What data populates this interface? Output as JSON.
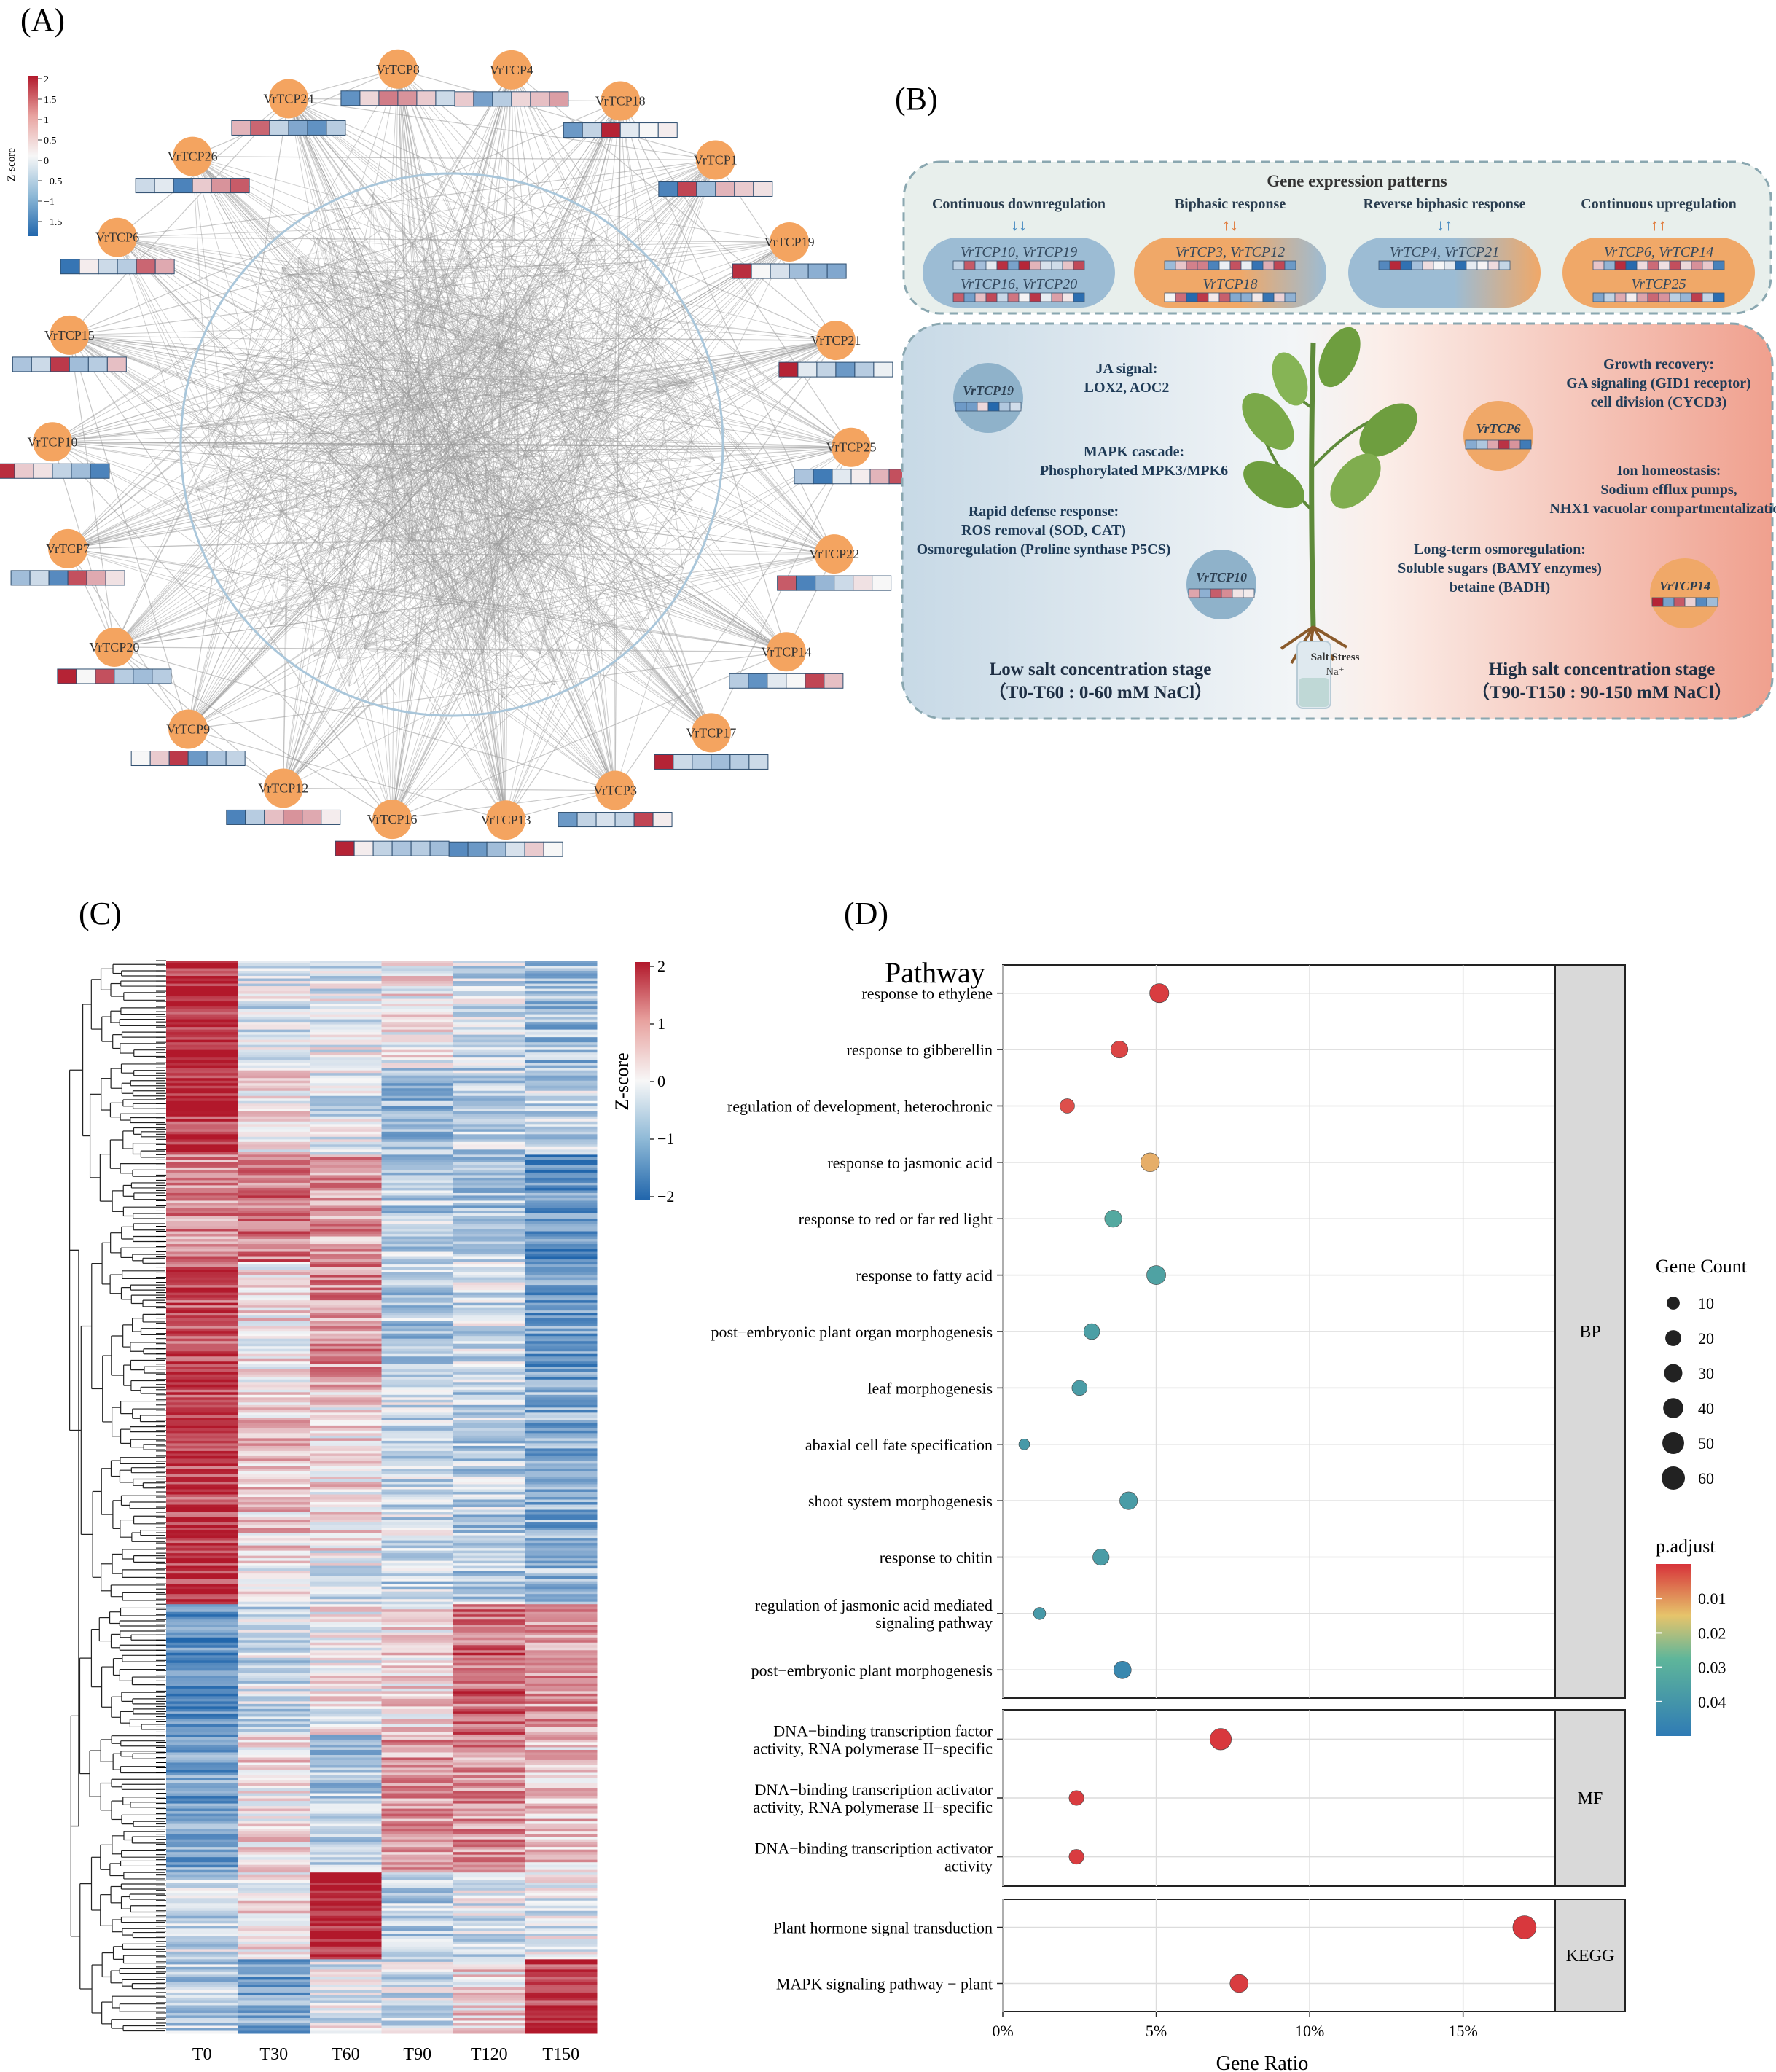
{
  "panel_labels": {
    "a": "(A)",
    "b": "(B)",
    "c": "(C)",
    "d": "(D)"
  },
  "colors": {
    "node": "#f4a460",
    "high": "#b2182b",
    "low": "#2166ac",
    "mid": "#f7f7f7",
    "edge": "#9a9a9a"
  },
  "panel_a": {
    "legend_title": "Z-score",
    "legend_ticks": [
      "2",
      "1.5",
      "1",
      "0.5",
      "0",
      "−0.5",
      "−1",
      "−1.5"
    ],
    "nodes": [
      {
        "name": "VrTCP4",
        "z": [
          0.4,
          -1.2,
          -0.6,
          0.3,
          0.5,
          0.8
        ]
      },
      {
        "name": "VrTCP18",
        "z": [
          -1.3,
          -0.5,
          1.9,
          -0.2,
          0,
          0.1
        ]
      },
      {
        "name": "VrTCP1",
        "z": [
          -1.6,
          1.6,
          -0.8,
          0.6,
          0.4,
          0.2
        ]
      },
      {
        "name": "VrTCP19",
        "z": [
          1.8,
          0,
          -0.3,
          -0.8,
          -1.0,
          -1.1
        ]
      },
      {
        "name": "VrTCP21",
        "z": [
          1.9,
          -0.2,
          -0.5,
          -1.3,
          -0.6,
          -0.1
        ]
      },
      {
        "name": "VrTCP25",
        "z": [
          -0.7,
          -1.7,
          -0.2,
          0.1,
          0.6,
          1.5
        ]
      },
      {
        "name": "VrTCP22",
        "z": [
          1.4,
          -1.6,
          -0.9,
          -0.4,
          0.2,
          0
        ]
      },
      {
        "name": "VrTCP14",
        "z": [
          -0.6,
          -1.4,
          -0.2,
          0,
          1.6,
          0.5
        ]
      },
      {
        "name": "VrTCP17",
        "z": [
          1.9,
          -0.4,
          -0.6,
          -0.8,
          -0.6,
          -0.4
        ]
      },
      {
        "name": "VrTCP3",
        "z": [
          -1.3,
          -0.5,
          -0.3,
          -0.5,
          1.6,
          0.1
        ]
      },
      {
        "name": "VrTCP13",
        "z": [
          -1.5,
          -1.3,
          -0.8,
          -0.3,
          0.4,
          0
        ]
      },
      {
        "name": "VrTCP16",
        "z": [
          1.9,
          0.1,
          -0.5,
          -0.7,
          -0.6,
          -0.8
        ]
      },
      {
        "name": "VrTCP12",
        "z": [
          -1.6,
          -0.6,
          0.5,
          0.9,
          0.7,
          0.1
        ]
      },
      {
        "name": "VrTCP9",
        "z": [
          0,
          0.4,
          1.7,
          -1.3,
          -0.7,
          -0.5
        ]
      },
      {
        "name": "VrTCP20",
        "z": [
          1.9,
          0,
          1.5,
          -0.6,
          -0.8,
          -0.6
        ]
      },
      {
        "name": "VrTCP7",
        "z": [
          -0.8,
          -0.4,
          -1.5,
          1.5,
          0.7,
          0.2
        ]
      },
      {
        "name": "VrTCP10",
        "z": [
          1.8,
          0.4,
          0.2,
          -0.5,
          -0.8,
          -1.6
        ]
      },
      {
        "name": "VrTCP15",
        "z": [
          -0.7,
          -0.4,
          1.7,
          -0.8,
          -0.6,
          0.5
        ]
      },
      {
        "name": "VrTCP6",
        "z": [
          -1.8,
          0.1,
          -0.4,
          -0.6,
          1.3,
          0.7
        ]
      },
      {
        "name": "VrTCP26",
        "z": [
          -0.4,
          -0.2,
          -1.6,
          0.4,
          0.9,
          1.4
        ]
      },
      {
        "name": "VrTCP24",
        "z": [
          0.6,
          1.3,
          -0.5,
          -1.1,
          -1.4,
          -0.6
        ]
      },
      {
        "name": "VrTCP8",
        "z": [
          -1.4,
          0.3,
          1.1,
          0.9,
          0.4,
          -0.4
        ]
      }
    ]
  },
  "panel_b": {
    "patterns_title": "Gene expression patterns",
    "patterns": [
      {
        "title": "Continuous downregulation",
        "arrows": "↓↓",
        "genes": [
          "VrTCP10, VrTCP19",
          "VrTCP16, VrTCP20"
        ]
      },
      {
        "title": "Biphasic response",
        "arrows": "↑↓",
        "genes": [
          "VrTCP3, VrTCP12",
          "VrTCP18"
        ]
      },
      {
        "title": "Reverse biphasic response",
        "arrows": "↓↑",
        "genes": [
          "VrTCP4, VrTCP21"
        ]
      },
      {
        "title": "Continuous upregulation",
        "arrows": "↑↑",
        "genes": [
          "VrTCP6, VrTCP14",
          "VrTCP25"
        ]
      }
    ],
    "gene_circles": {
      "g19": "VrTCP19",
      "g10": "VrTCP10",
      "g6": "VrTCP6",
      "g14": "VrTCP14"
    },
    "low_text": {
      "ja_1": "JA signal:",
      "ja_2": "LOX2, AOC2",
      "mapk_1": "MAPK cascade:",
      "mapk_2": "Phosphorylated MPK3/MPK6",
      "def_1": "Rapid defense response:",
      "def_2": "ROS removal (SOD, CAT)",
      "def_3": "Osmoregulation (Proline synthase P5CS)"
    },
    "high_text": {
      "gr_1": "Growth recovery:",
      "gr_2": "GA signaling (GID1 receptor)",
      "gr_3": "cell division (CYCD3)",
      "ion_1": "Ion homeostasis:",
      "ion_2": "Sodium efflux pumps,",
      "ion_3": "NHX1 vacuolar compartmentalization",
      "lt_1": "Long-term osmoregulation:",
      "lt_2": "Soluble sugars (BAMY enzymes)",
      "lt_3": "betaine (BADH)"
    },
    "low_stage": {
      "title": "Low salt concentration stage",
      "range": "（T0-T60 : 0-60 mM NaCl）"
    },
    "high_stage": {
      "title": "High salt concentration stage",
      "range": "（T90-T150 : 90-150 mM NaCl）"
    },
    "salt_label": "Salt Stress",
    "salt_ion": "Na⁺"
  },
  "panel_c": {
    "legend_title": "Z-score",
    "legend_ticks": [
      "2",
      "1",
      "0",
      "−1",
      "−2"
    ],
    "columns": [
      "T0",
      "T30",
      "T60",
      "T90",
      "T120",
      "T150"
    ]
  },
  "chart_data": {
    "type": "scatter",
    "title": "Pathway",
    "xlabel": "Gene Ratio",
    "x_ticks": [
      "0%",
      "5%",
      "10%",
      "15%"
    ],
    "xlim": [
      0,
      0.18
    ],
    "size_legend_title": "Gene Count",
    "size_ticks": [
      10,
      20,
      30,
      40,
      50,
      60
    ],
    "color_legend_title": "p.adjust",
    "color_ticks": [
      "0.01",
      "0.02",
      "0.03",
      "0.04"
    ],
    "color_range": [
      0.0,
      0.05
    ],
    "facets": [
      {
        "name": "BP",
        "terms": [
          {
            "label": "response to ethylene",
            "ratio": 0.051,
            "count": 35,
            "padj": 0.002
          },
          {
            "label": "response to gibberellin",
            "ratio": 0.038,
            "count": 25,
            "padj": 0.004
          },
          {
            "label": "regulation of development, heterochronic",
            "ratio": 0.021,
            "count": 15,
            "padj": 0.006
          },
          {
            "label": "response to jasmonic acid",
            "ratio": 0.048,
            "count": 33,
            "padj": 0.02
          },
          {
            "label": "response to red or far red light",
            "ratio": 0.036,
            "count": 25,
            "padj": 0.036
          },
          {
            "label": "response to fatty acid",
            "ratio": 0.05,
            "count": 34,
            "padj": 0.038
          },
          {
            "label": "post−embryonic plant organ morphogenesis",
            "ratio": 0.029,
            "count": 20,
            "padj": 0.039
          },
          {
            "label": "leaf morphogenesis",
            "ratio": 0.025,
            "count": 17,
            "padj": 0.04
          },
          {
            "label": "abaxial cell fate specification",
            "ratio": 0.007,
            "count": 5,
            "padj": 0.041
          },
          {
            "label": "shoot system morphogenesis",
            "ratio": 0.041,
            "count": 28,
            "padj": 0.04
          },
          {
            "label": "response to chitin",
            "ratio": 0.032,
            "count": 22,
            "padj": 0.04
          },
          {
            "label": "regulation of jasmonic acid mediated|signaling pathway",
            "ratio": 0.012,
            "count": 8,
            "padj": 0.041
          },
          {
            "label": "post−embryonic plant morphogenesis",
            "ratio": 0.039,
            "count": 27,
            "padj": 0.046
          }
        ]
      },
      {
        "name": "MF",
        "terms": [
          {
            "label": "DNA−binding transcription factor|activity, RNA polymerase II−specific",
            "ratio": 0.071,
            "count": 48,
            "padj": 0.001
          },
          {
            "label": "DNA−binding transcription activator|activity, RNA polymerase II−specific",
            "ratio": 0.024,
            "count": 16,
            "padj": 0.002
          },
          {
            "label": "DNA−binding transcription activator|activity",
            "ratio": 0.024,
            "count": 16,
            "padj": 0.002
          }
        ]
      },
      {
        "name": "KEGG",
        "terms": [
          {
            "label": "Plant hormone signal transduction",
            "ratio": 0.17,
            "count": 60,
            "padj": 0.001
          },
          {
            "label": "MAPK signaling pathway − plant",
            "ratio": 0.077,
            "count": 30,
            "padj": 0.002
          }
        ]
      }
    ]
  }
}
